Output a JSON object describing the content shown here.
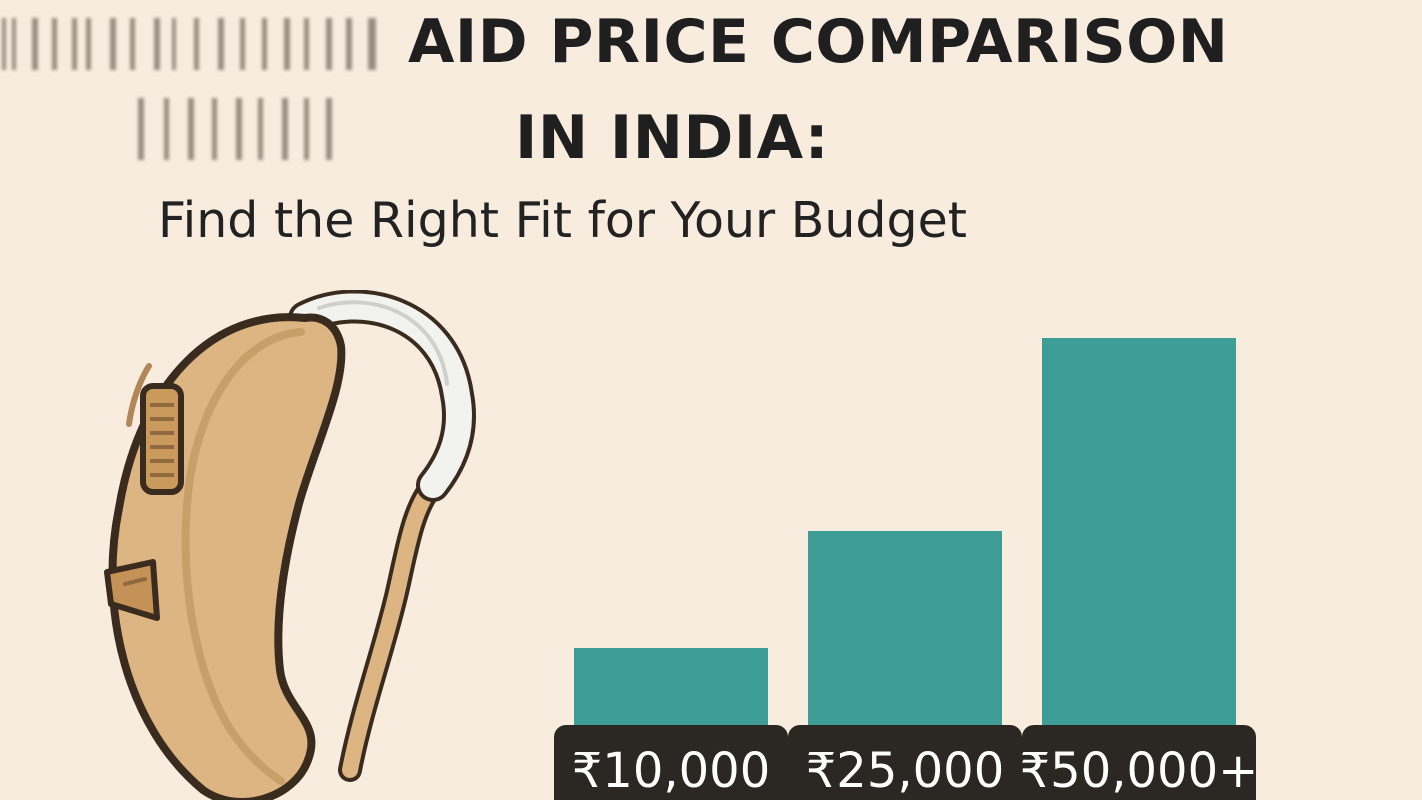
{
  "title": {
    "line1": "AID PRICE COMPARISON",
    "line2": "IN INDIA:"
  },
  "subtitle": "Find the Right Fit for Your Budget",
  "colors": {
    "background": "#f7ecdd",
    "bar": "#3f9d98",
    "label_bg": "#2b2823",
    "label_text": "#ffffff",
    "hearing_aid_body": "#dcb582",
    "hearing_aid_tube": "#f2f2ef"
  },
  "icons": {
    "device": "hearing-aid-icon",
    "watermark": "blurred-watermark"
  },
  "chart_data": {
    "type": "bar",
    "categories": [
      "₹10,000",
      "₹25,000",
      "₹50,000+"
    ],
    "values": [
      10000,
      25000,
      50000
    ],
    "ylim": [
      0,
      55000
    ],
    "grid": false,
    "legend": "none"
  }
}
